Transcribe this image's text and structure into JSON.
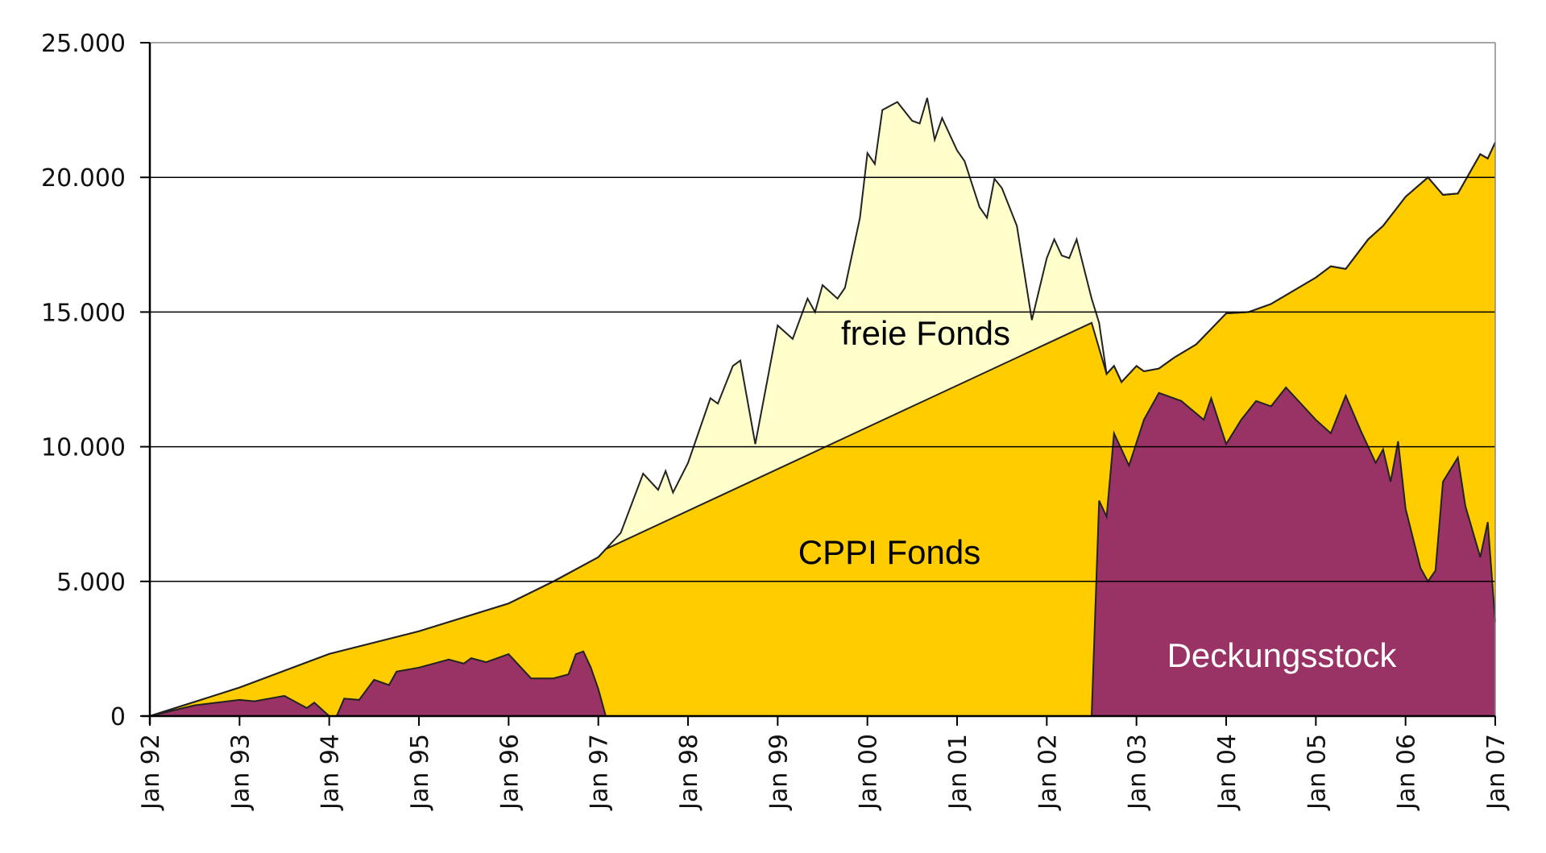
{
  "chart_data": {
    "type": "area",
    "title": "",
    "xlabel": "",
    "ylabel": "",
    "ylim": [
      0,
      25000
    ],
    "yticks": [
      "0",
      "5.000",
      "10.000",
      "15.000",
      "20.000",
      "25.000"
    ],
    "ytick_values": [
      0,
      5000,
      10000,
      15000,
      20000,
      25000
    ],
    "xticks": [
      "Jan 92",
      "Jan 93",
      "Jan 94",
      "Jan 95",
      "Jan 96",
      "Jan 97",
      "Jan 98",
      "Jan 99",
      "Jan 00",
      "Jan 01",
      "Jan 02",
      "Jan 03",
      "Jan 04",
      "Jan 05",
      "Jan 06",
      "Jan 07"
    ],
    "xtick_values": [
      "1992-01",
      "1993-01",
      "1994-01",
      "1995-01",
      "1996-01",
      "1997-01",
      "1998-01",
      "1999-01",
      "2000-01",
      "2001-01",
      "2002-01",
      "2003-01",
      "2004-01",
      "2005-01",
      "2006-01",
      "2007-01"
    ],
    "xlim": [
      "1992-01",
      "2007-01"
    ],
    "grid": "horizontal",
    "colors": {
      "freie_fonds": "#FFFFCC",
      "cppi_fonds": "#FFCC00",
      "deckungsstock": "#993366",
      "line": "#222222"
    },
    "series": [
      {
        "name": "freie Fonds",
        "label_color": "#000000",
        "points": [
          [
            "1992-01",
            0
          ],
          [
            "1993-01",
            1060
          ],
          [
            "1994-01",
            2310
          ],
          [
            "1995-01",
            3150
          ],
          [
            "1996-01",
            4180
          ],
          [
            "1996-07",
            5000
          ],
          [
            "1997-01",
            5900
          ],
          [
            "1997-04",
            6800
          ],
          [
            "1997-07",
            9000
          ],
          [
            "1997-09",
            8400
          ],
          [
            "1997-10",
            9100
          ],
          [
            "1997-11",
            8300
          ],
          [
            "1998-01",
            9400
          ],
          [
            "1998-04",
            11800
          ],
          [
            "1998-05",
            11600
          ],
          [
            "1998-07",
            13000
          ],
          [
            "1998-08",
            13200
          ],
          [
            "1998-10",
            10100
          ],
          [
            "1999-01",
            14500
          ],
          [
            "1999-03",
            14000
          ],
          [
            "1999-05",
            15500
          ],
          [
            "1999-06",
            15000
          ],
          [
            "1999-07",
            16000
          ],
          [
            "1999-09",
            15500
          ],
          [
            "1999-10",
            15900
          ],
          [
            "1999-12",
            18500
          ],
          [
            "2000-01",
            20900
          ],
          [
            "2000-02",
            20500
          ],
          [
            "2000-03",
            22500
          ],
          [
            "2000-05",
            22800
          ],
          [
            "2000-07",
            22100
          ],
          [
            "2000-08",
            22000
          ],
          [
            "2000-09",
            22950
          ],
          [
            "2000-10",
            21400
          ],
          [
            "2000-11",
            22200
          ],
          [
            "2001-01",
            21000
          ],
          [
            "2001-02",
            20600
          ],
          [
            "2001-04",
            18900
          ],
          [
            "2001-05",
            18500
          ],
          [
            "2001-06",
            19950
          ],
          [
            "2001-07",
            19600
          ],
          [
            "2001-09",
            18200
          ],
          [
            "2001-11",
            14700
          ],
          [
            "2002-01",
            17000
          ],
          [
            "2002-02",
            17700
          ],
          [
            "2002-03",
            17100
          ],
          [
            "2002-04",
            17000
          ],
          [
            "2002-05",
            17700
          ],
          [
            "2002-07",
            15500
          ],
          [
            "2002-08",
            14600
          ],
          [
            "2002-09",
            12700
          ],
          [
            "2002-10",
            13000
          ],
          [
            "2002-11",
            12400
          ],
          [
            "2003-01",
            13000
          ],
          [
            "2003-02",
            12800
          ],
          [
            "2003-04",
            12900
          ],
          [
            "2003-06",
            13300
          ],
          [
            "2003-09",
            13800
          ],
          [
            "2004-01",
            14950
          ],
          [
            "2004-04",
            15000
          ],
          [
            "2004-07",
            15300
          ],
          [
            "2005-01",
            16280
          ],
          [
            "2005-03",
            16700
          ],
          [
            "2005-05",
            16600
          ],
          [
            "2005-08",
            17700
          ],
          [
            "2005-10",
            18200
          ],
          [
            "2006-01",
            19280
          ],
          [
            "2006-04",
            20000
          ],
          [
            "2006-06",
            19350
          ],
          [
            "2006-08",
            19400
          ],
          [
            "2006-11",
            20860
          ],
          [
            "2006-12",
            20700
          ],
          [
            "2007-01",
            21300
          ]
        ]
      },
      {
        "name": "CPPI Fonds",
        "label_color": "#000000",
        "points": [
          [
            "1992-01",
            0
          ],
          [
            "1993-01",
            1060
          ],
          [
            "1994-01",
            2310
          ],
          [
            "1995-01",
            3150
          ],
          [
            "1996-01",
            4180
          ],
          [
            "1996-07",
            5000
          ],
          [
            "1997-01",
            5900
          ],
          [
            "1997-02",
            6200
          ],
          [
            "2002-07",
            14600
          ],
          [
            "2002-09",
            12700
          ],
          [
            "2002-10",
            13000
          ],
          [
            "2002-11",
            12400
          ],
          [
            "2003-01",
            13000
          ],
          [
            "2003-02",
            12800
          ],
          [
            "2003-04",
            12900
          ],
          [
            "2003-06",
            13300
          ],
          [
            "2003-09",
            13800
          ],
          [
            "2004-01",
            14950
          ],
          [
            "2004-04",
            15000
          ],
          [
            "2004-07",
            15300
          ],
          [
            "2005-01",
            16280
          ],
          [
            "2005-03",
            16700
          ],
          [
            "2005-05",
            16600
          ],
          [
            "2005-08",
            17700
          ],
          [
            "2005-10",
            18200
          ],
          [
            "2006-01",
            19280
          ],
          [
            "2006-04",
            20000
          ],
          [
            "2006-06",
            19350
          ],
          [
            "2006-08",
            19400
          ],
          [
            "2006-11",
            20860
          ],
          [
            "2006-12",
            20700
          ],
          [
            "2007-01",
            21300
          ]
        ]
      },
      {
        "name": "Deckungsstock",
        "label_color": "#FFFFFF",
        "points": [
          [
            "1992-01",
            0
          ],
          [
            "1992-07",
            400
          ],
          [
            "1993-01",
            600
          ],
          [
            "1993-03",
            550
          ],
          [
            "1993-07",
            750
          ],
          [
            "1993-10",
            300
          ],
          [
            "1993-11",
            500
          ],
          [
            "1994-01",
            0
          ],
          [
            "1994-02",
            0
          ],
          [
            "1994-03",
            650
          ],
          [
            "1994-05",
            600
          ],
          [
            "1994-07",
            1350
          ],
          [
            "1994-09",
            1150
          ],
          [
            "1994-10",
            1650
          ],
          [
            "1995-01",
            1800
          ],
          [
            "1995-05",
            2100
          ],
          [
            "1995-07",
            1950
          ],
          [
            "1995-08",
            2150
          ],
          [
            "1995-10",
            2000
          ],
          [
            "1996-01",
            2300
          ],
          [
            "1996-04",
            1400
          ],
          [
            "1996-07",
            1400
          ],
          [
            "1996-09",
            1550
          ],
          [
            "1996-10",
            2300
          ],
          [
            "1996-11",
            2400
          ],
          [
            "1996-12",
            1800
          ],
          [
            "1997-01",
            1000
          ],
          [
            "1997-02",
            0
          ],
          [
            "2002-07",
            0
          ],
          [
            "2002-08",
            8000
          ],
          [
            "2002-09",
            7400
          ],
          [
            "2002-10",
            10500
          ],
          [
            "2002-12",
            9300
          ],
          [
            "2003-02",
            11000
          ],
          [
            "2003-04",
            12000
          ],
          [
            "2003-07",
            11700
          ],
          [
            "2003-10",
            11000
          ],
          [
            "2003-11",
            11800
          ],
          [
            "2004-01",
            10100
          ],
          [
            "2004-03",
            11000
          ],
          [
            "2004-05",
            11700
          ],
          [
            "2004-07",
            11500
          ],
          [
            "2004-09",
            12200
          ],
          [
            "2005-01",
            11000
          ],
          [
            "2005-03",
            10500
          ],
          [
            "2005-05",
            11900
          ],
          [
            "2005-07",
            10600
          ],
          [
            "2005-09",
            9400
          ],
          [
            "2005-10",
            9900
          ],
          [
            "2005-11",
            8700
          ],
          [
            "2005-12",
            10200
          ],
          [
            "2006-01",
            7700
          ],
          [
            "2006-03",
            5500
          ],
          [
            "2006-04",
            5000
          ],
          [
            "2006-05",
            5400
          ],
          [
            "2006-06",
            8700
          ],
          [
            "2006-08",
            9600
          ],
          [
            "2006-09",
            7800
          ],
          [
            "2006-11",
            5900
          ],
          [
            "2006-12",
            7200
          ],
          [
            "2007-01",
            3500
          ]
        ]
      }
    ],
    "annotations": [
      "freie Fonds",
      "CPPI Fonds",
      "Deckungsstock"
    ]
  }
}
